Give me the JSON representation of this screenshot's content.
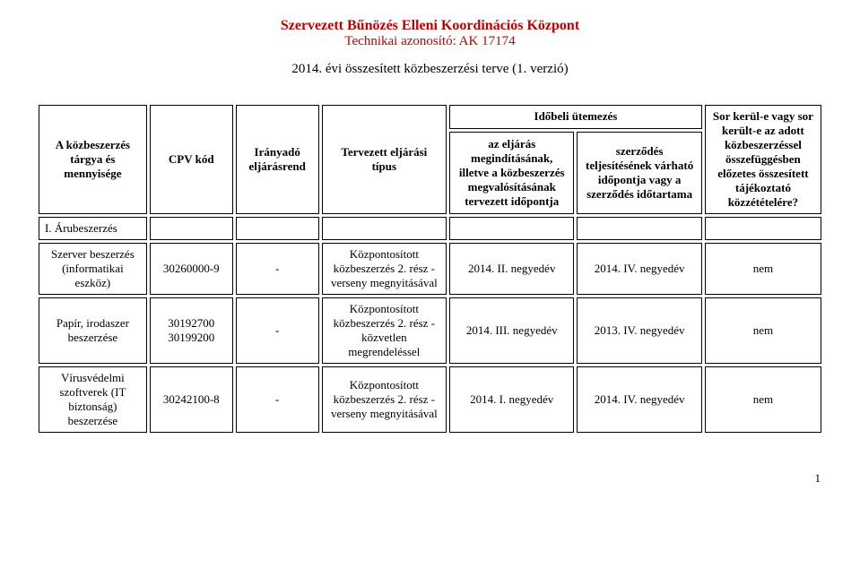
{
  "header": {
    "title1": "Szervezett Bűnözés Elleni Koordinációs Központ",
    "title2": "Technikai azonosító: AK 17174",
    "subtitle": "2014. évi összesített közbeszerzési terve (1. verzió)"
  },
  "table": {
    "head": {
      "c0": "A közbeszerzés tárgya és mennyisége",
      "c1": "CPV kód",
      "c2": "Irányadó eljárásrend",
      "c3": "Tervezett eljárási típus",
      "time_group": "Időbeli ütemezés",
      "c4": "az eljárás megindításának, illetve a közbeszerzés megvalósításának tervezett időpontja",
      "c5": "szerződés teljesítésének várható időpontja vagy a szerződés időtartama",
      "c6": "Sor kerül-e vagy sor került-e az adott közbeszerzéssel összefüggésben előzetes összesített tájékoztató közzétételére?"
    },
    "section": "I. Árubeszerzés",
    "rows": [
      {
        "c0": "Szerver beszerzés (informatikai eszköz)",
        "c1": "30260000-9",
        "c2": "-",
        "c3": "Központosított közbeszerzés 2. rész - verseny megnyitásával",
        "c4": "2014. II. negyedév",
        "c5": "2014. IV. negyedév",
        "c6": "nem"
      },
      {
        "c0": "Papír, irodaszer beszerzése",
        "c1": "30192700 30199200",
        "c2": "-",
        "c3": "Központosított közbeszerzés 2. rész - közvetlen megrendeléssel",
        "c4": "2014. III. negyedév",
        "c5": "2013. IV. negyedév",
        "c6": "nem"
      },
      {
        "c0": "Vírusvédelmi szoftverek (IT biztonság) beszerzése",
        "c1": "30242100-8",
        "c2": "-",
        "c3": "Központosított közbeszerzés 2. rész - verseny megnyitásával",
        "c4": "2014. I. negyedév",
        "c5": "2014. IV. negyedév",
        "c6": "nem"
      }
    ]
  },
  "footer": {
    "pagenum": "1"
  }
}
